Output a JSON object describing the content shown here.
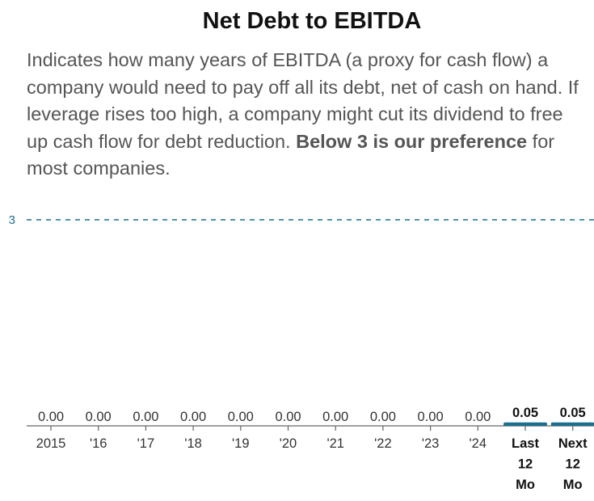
{
  "title": "Net Debt to EBITDA",
  "description": {
    "text": "Indicates how many years of EBITDA (a proxy for cash flow) a company would need to pay off all its debt, net of cash on hand. If leverage rises too high, a company might cut its dividend to free up cash flow for debt reduction. ",
    "bold": "Below 3 is our preference",
    "tail": " for most companies."
  },
  "colors": {
    "reference_line": "#1a6e8e",
    "highlight_bar": "#1a6e8e",
    "axis": "#666666",
    "text": "#333333"
  },
  "chart_data": {
    "type": "bar",
    "title": "Net Debt to EBITDA",
    "categories": [
      "2015",
      "'16",
      "'17",
      "'18",
      "'19",
      "'20",
      "'21",
      "'22",
      "'23",
      "'24",
      "Last 12 Mo",
      "Next 12 Mo"
    ],
    "values": [
      0.0,
      0.0,
      0.0,
      0.0,
      0.0,
      0.0,
      0.0,
      0.0,
      0.0,
      0.0,
      0.05,
      0.05
    ],
    "value_labels": [
      "0.00",
      "0.00",
      "0.00",
      "0.00",
      "0.00",
      "0.00",
      "0.00",
      "0.00",
      "0.00",
      "0.00",
      "0.05",
      "0.05"
    ],
    "highlighted": [
      false,
      false,
      false,
      false,
      false,
      false,
      false,
      false,
      false,
      false,
      true,
      true
    ],
    "reference_line": {
      "value": 3,
      "label": "3",
      "style": "dashed"
    },
    "ylim": [
      0,
      3.3
    ],
    "xlabel": "",
    "ylabel": "",
    "grid": false
  }
}
